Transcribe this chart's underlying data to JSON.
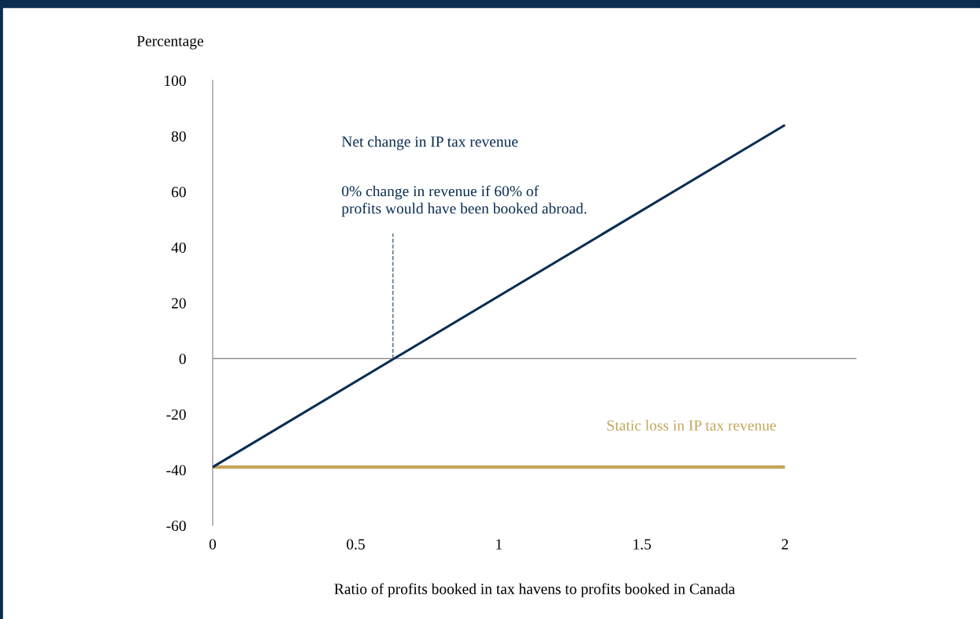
{
  "chart_data": {
    "type": "line",
    "xlabel": "Ratio of profits booked in tax havens to profits booked in Canada",
    "ylabel": "Percentage",
    "xlim": [
      0,
      2.25
    ],
    "xticks": [
      0,
      0.5,
      1,
      1.5,
      2
    ],
    "ylim": [
      -60,
      100
    ],
    "yticks": [
      -60,
      -40,
      -20,
      0,
      20,
      40,
      60,
      80,
      100
    ],
    "grid": false,
    "legend": false,
    "marker": "none",
    "series": [
      {
        "name": "Net change in IP tax revenue",
        "color": "#0b2d52",
        "x": [
          0,
          2
        ],
        "values": [
          -39,
          84
        ]
      },
      {
        "name": "Static loss in IP tax revenue",
        "color": "#c4a55a",
        "x": [
          0,
          2
        ],
        "values": [
          -39,
          -39
        ]
      },
      {
        "color": "#4a6580",
        "x": [
          0.63,
          0.63
        ],
        "values": [
          0,
          45
        ],
        "line_style": "dashed"
      }
    ],
    "ref_lines": [
      {
        "axis": "y",
        "value": 0,
        "color": "#808080"
      }
    ],
    "annotations": [
      {
        "text": "0% change in revenue if 60% of\nprofits would have been booked abroad.",
        "x": 0.63,
        "y": 45
      }
    ]
  }
}
